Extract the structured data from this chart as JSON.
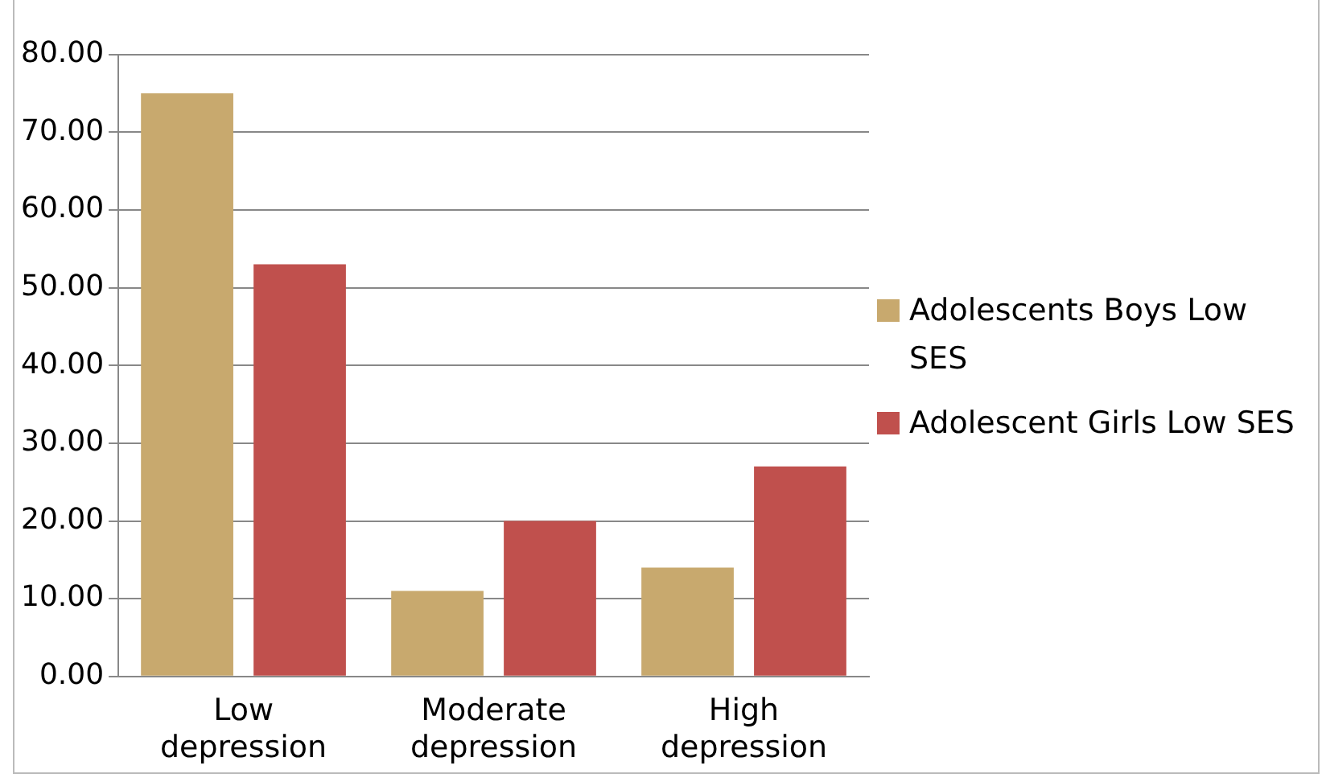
{
  "chart_data": {
    "type": "bar",
    "categories": [
      "Low depression",
      "Moderate depression",
      "High depression"
    ],
    "series": [
      {
        "name": "Adolescents Boys Low SES",
        "color": "#c8a96e",
        "values": [
          75,
          11,
          14
        ]
      },
      {
        "name": "Adolescent Girls Low SES",
        "color": "#c0504d",
        "values": [
          53,
          20,
          27
        ]
      }
    ],
    "ylim": [
      0,
      80
    ],
    "yticks": [
      {
        "value": 0,
        "label": "0.00"
      },
      {
        "value": 10,
        "label": "10.00"
      },
      {
        "value": 20,
        "label": "20.00"
      },
      {
        "value": 30,
        "label": "30.00"
      },
      {
        "value": 40,
        "label": "40.00"
      },
      {
        "value": 50,
        "label": "50.00"
      },
      {
        "value": 60,
        "label": "60.00"
      },
      {
        "value": 70,
        "label": "70.00"
      },
      {
        "value": 80,
        "label": "80.00"
      }
    ],
    "grid": "y",
    "legend": "right"
  }
}
